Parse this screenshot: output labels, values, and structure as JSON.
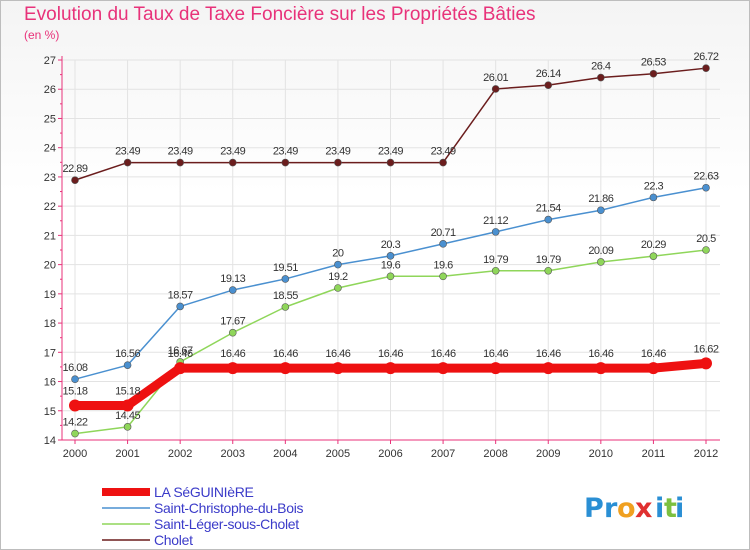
{
  "header": {
    "title": "Evolution du Taux de Taxe Foncière sur les Propriétés Bâties",
    "unit": "(en %)"
  },
  "chart_data": {
    "type": "line",
    "title": "Evolution du Taux de Taxe Foncière sur les Propriétés Bâties",
    "ylabel": "(en %)",
    "xlabel": "",
    "ylim": [
      14,
      27
    ],
    "yticks": [
      14,
      15,
      16,
      17,
      18,
      19,
      20,
      21,
      22,
      23,
      24,
      25,
      26,
      27
    ],
    "grid": true,
    "categories": [
      "2000",
      "2001",
      "2002",
      "2003",
      "2004",
      "2005",
      "2006",
      "2007",
      "2008",
      "2009",
      "2010",
      "2011",
      "2012"
    ],
    "series": [
      {
        "name": "LA SéGUINIèRE",
        "color": "#ee1111",
        "values": [
          15.18,
          15.18,
          16.46,
          16.46,
          16.46,
          16.46,
          16.46,
          16.46,
          16.46,
          16.46,
          16.46,
          16.46,
          16.62
        ]
      },
      {
        "name": "Saint-Christophe-du-Bois",
        "color": "#4a90d0",
        "values": [
          16.08,
          16.56,
          18.57,
          19.13,
          19.51,
          20,
          20.3,
          20.71,
          21.12,
          21.54,
          21.86,
          22.3,
          22.63
        ]
      },
      {
        "name": "Saint-Léger-sous-Cholet",
        "color": "#8fd65a",
        "values": [
          14.22,
          14.45,
          16.67,
          17.67,
          18.55,
          19.2,
          19.6,
          19.6,
          19.79,
          19.79,
          20.09,
          20.29,
          20.5
        ]
      },
      {
        "name": "Cholet",
        "color": "#6b1d1d",
        "values": [
          22.89,
          23.49,
          23.49,
          23.49,
          23.49,
          23.49,
          23.49,
          23.49,
          26.01,
          26.14,
          26.4,
          26.53,
          26.72
        ]
      }
    ]
  },
  "brand": {
    "name": "Proxiti",
    "letters": [
      "P",
      "r",
      "o",
      "x",
      "i",
      "t",
      "i"
    ],
    "colors": [
      "#2a8fd4",
      "#2a8fd4",
      "#f0a020",
      "#e03030",
      "#2a8fd4",
      "#7cc040",
      "#2a8fd4"
    ]
  }
}
